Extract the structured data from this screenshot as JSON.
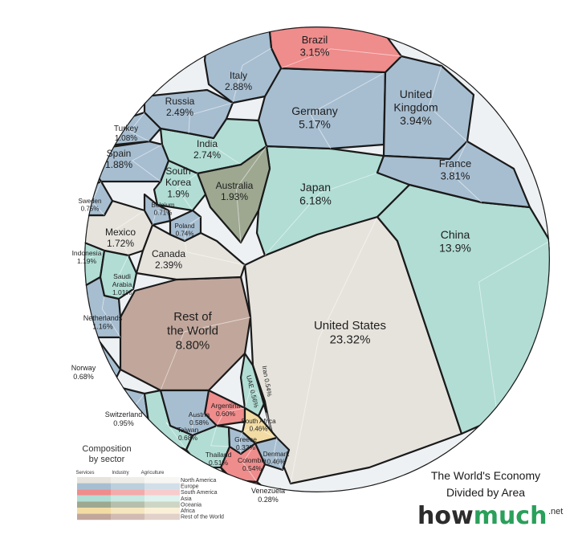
{
  "chart_data": {
    "type": "voronoi-treemap",
    "title": "The World's Economy Divided by Area",
    "unit": "%",
    "series": [
      {
        "name": "United States",
        "value": 23.32,
        "region": "North America"
      },
      {
        "name": "China",
        "value": 13.9,
        "region": "Asia"
      },
      {
        "name": "Rest of the World",
        "value": 8.8,
        "region": "Rest of the World"
      },
      {
        "name": "Japan",
        "value": 6.18,
        "region": "Asia"
      },
      {
        "name": "Germany",
        "value": 5.17,
        "region": "Europe"
      },
      {
        "name": "United Kingdom",
        "value": 3.94,
        "region": "Europe"
      },
      {
        "name": "France",
        "value": 3.81,
        "region": "Europe"
      },
      {
        "name": "Brazil",
        "value": 3.15,
        "region": "South America"
      },
      {
        "name": "Italy",
        "value": 2.88,
        "region": "Europe"
      },
      {
        "name": "India",
        "value": 2.74,
        "region": "Asia"
      },
      {
        "name": "Russia",
        "value": 2.49,
        "region": "Europe"
      },
      {
        "name": "Canada",
        "value": 2.39,
        "region": "North America"
      },
      {
        "name": "Australia",
        "value": 1.93,
        "region": "Oceania"
      },
      {
        "name": "South Korea",
        "value": 1.9,
        "region": "Asia"
      },
      {
        "name": "Spain",
        "value": 1.88,
        "region": "Europe"
      },
      {
        "name": "Mexico",
        "value": 1.72,
        "region": "North America"
      },
      {
        "name": "Indonesia",
        "value": 1.19,
        "region": "Asia"
      },
      {
        "name": "Netherlands",
        "value": 1.16,
        "region": "Europe"
      },
      {
        "name": "Turkey",
        "value": 1.08,
        "region": "Europe"
      },
      {
        "name": "Saudi Arabia",
        "value": 1.01,
        "region": "Asia"
      },
      {
        "name": "Switzerland",
        "value": 0.95,
        "region": "Europe"
      },
      {
        "name": "Sweden",
        "value": 0.75,
        "region": "Europe"
      },
      {
        "name": "Poland",
        "value": 0.74,
        "region": "Europe"
      },
      {
        "name": "Belgium",
        "value": 0.71,
        "region": "Europe"
      },
      {
        "name": "Taiwan",
        "value": 0.68,
        "region": "Asia"
      },
      {
        "name": "Norway",
        "value": 0.68,
        "region": "Europe"
      },
      {
        "name": "Argentina",
        "value": 0.6,
        "region": "South America"
      },
      {
        "name": "Austria",
        "value": 0.58,
        "region": "Europe"
      },
      {
        "name": "UAE",
        "value": 0.56,
        "region": "Asia"
      },
      {
        "name": "Colombia",
        "value": 0.54,
        "region": "South America"
      },
      {
        "name": "Iran",
        "value": 0.54,
        "region": "Asia"
      },
      {
        "name": "Thailand",
        "value": 0.51,
        "region": "Asia"
      },
      {
        "name": "South Africa",
        "value": 0.46,
        "region": "Africa"
      },
      {
        "name": "Denmark",
        "value": 0.46,
        "region": "Europe"
      },
      {
        "name": "Greece",
        "value": 0.33,
        "region": "Europe"
      },
      {
        "name": "Venezuela",
        "value": 0.28,
        "region": "South America"
      }
    ],
    "labels": [
      {
        "name": "Brazil",
        "lines": [
          "Brazil",
          "3.15%"
        ]
      },
      {
        "name": "Italy",
        "lines": [
          "Italy",
          "2.88%"
        ]
      },
      {
        "name": "Russia",
        "lines": [
          "Russia",
          "2.49%"
        ]
      },
      {
        "name": "Germany",
        "lines": [
          "Germany",
          "5.17%"
        ]
      },
      {
        "name": "United Kingdom",
        "lines": [
          "United",
          "Kingdom",
          "3.94%"
        ]
      },
      {
        "name": "Turkey",
        "lines": [
          "Turkey",
          "1.08%"
        ]
      },
      {
        "name": "India",
        "lines": [
          "India",
          "2.74%"
        ]
      },
      {
        "name": "Spain",
        "lines": [
          "Spain",
          "1.88%"
        ]
      },
      {
        "name": "France",
        "lines": [
          "France",
          "3.81%"
        ]
      },
      {
        "name": "South Korea",
        "lines": [
          "South",
          "Korea",
          "1.9%"
        ]
      },
      {
        "name": "Australia",
        "lines": [
          "Australia",
          "1.93%"
        ]
      },
      {
        "name": "Japan",
        "lines": [
          "Japan",
          "6.18%"
        ]
      },
      {
        "name": "Sweden",
        "lines": [
          "Sweden",
          "0.75%"
        ]
      },
      {
        "name": "Belgium",
        "lines": [
          "Belgium",
          "0.71%"
        ]
      },
      {
        "name": "Mexico",
        "lines": [
          "Mexico",
          "1.72%"
        ]
      },
      {
        "name": "Poland",
        "lines": [
          "Poland",
          "0.74%"
        ]
      },
      {
        "name": "China",
        "lines": [
          "China",
          "13.9%"
        ]
      },
      {
        "name": "Canada",
        "lines": [
          "Canada",
          "2.39%"
        ]
      },
      {
        "name": "Indonesia",
        "lines": [
          "Indonesia",
          "1.19%"
        ]
      },
      {
        "name": "Saudi Arabia",
        "lines": [
          "Saudi",
          "Arabia",
          "1.01%"
        ]
      },
      {
        "name": "Rest of the World",
        "lines": [
          "Rest of",
          "the World",
          "8.80%"
        ]
      },
      {
        "name": "Netherlands",
        "lines": [
          "Netherlands",
          "1.16%"
        ]
      },
      {
        "name": "United States",
        "lines": [
          "United States",
          "23.32%"
        ]
      },
      {
        "name": "UAE",
        "lines": [
          "UAE 0.56%"
        ]
      },
      {
        "name": "Iran",
        "lines": [
          "Iran 0.54%"
        ]
      },
      {
        "name": "Argentina",
        "lines": [
          "Argentina",
          "0.60%"
        ]
      },
      {
        "name": "Austria",
        "lines": [
          "Austria",
          "0.58%"
        ]
      },
      {
        "name": "South Africa",
        "lines": [
          "South Africa",
          "0.46%"
        ]
      },
      {
        "name": "Taiwan",
        "lines": [
          "Taiwan",
          "0.68%"
        ]
      },
      {
        "name": "Greece",
        "lines": [
          "Greece",
          "0.33%"
        ]
      },
      {
        "name": "Thailand",
        "lines": [
          "Thailand",
          "0.51%"
        ]
      },
      {
        "name": "Denmark",
        "lines": [
          "Denmark",
          "0.46%"
        ]
      },
      {
        "name": "Colombia",
        "lines": [
          "Colombia",
          "0.54%"
        ]
      },
      {
        "name": "Norway",
        "lines": [
          "Norway",
          "0.68%"
        ]
      },
      {
        "name": "Switzerland",
        "lines": [
          "Switzerland",
          "0.95%"
        ]
      },
      {
        "name": "Venezuela",
        "lines": [
          "Venezuela",
          "0.28%"
        ]
      }
    ],
    "legend": {
      "title_lines": [
        "Composition",
        "by sector"
      ],
      "columns": [
        "Services",
        "Industry",
        "Agriculture"
      ],
      "rows": [
        {
          "name": "North America",
          "colors": [
            "#e6e3dc",
            "#efede8",
            "#f7f6f3"
          ]
        },
        {
          "name": "Europe",
          "colors": [
            "#a7bed1",
            "#bccfdd",
            "#d2dfe9"
          ]
        },
        {
          "name": "South America",
          "colors": [
            "#ef8c8c",
            "#f4abab",
            "#f8cccc"
          ]
        },
        {
          "name": "Asia",
          "colors": [
            "#b1ddd4",
            "#c8e8e1",
            "#dff2ee"
          ]
        },
        {
          "name": "Oceania",
          "colors": [
            "#9ea891",
            "#b6bfab",
            "#ced5c5"
          ]
        },
        {
          "name": "Africa",
          "colors": [
            "#f2dca4",
            "#f6e6bf",
            "#faf0d8"
          ]
        },
        {
          "name": "Rest of the World",
          "colors": [
            "#c1a69b",
            "#d1bbb2",
            "#e1d1ca"
          ]
        }
      ]
    },
    "region_colors": {
      "North America": "#e6e3dc",
      "Europe": "#a7bed1",
      "South America": "#ef8c8c",
      "Asia": "#b1ddd4",
      "Oceania": "#9ea891",
      "Africa": "#f2dca4",
      "Rest of the World": "#c1a69b"
    }
  },
  "branding": {
    "title_lines": [
      "The World's Economy",
      "Divided by Area"
    ],
    "logo_how": "how",
    "logo_much": "much",
    "logo_net": ".net",
    "colors": {
      "how": "#2c2c2c",
      "much": "#2aa05a",
      "net": "#2c2c2c"
    }
  }
}
